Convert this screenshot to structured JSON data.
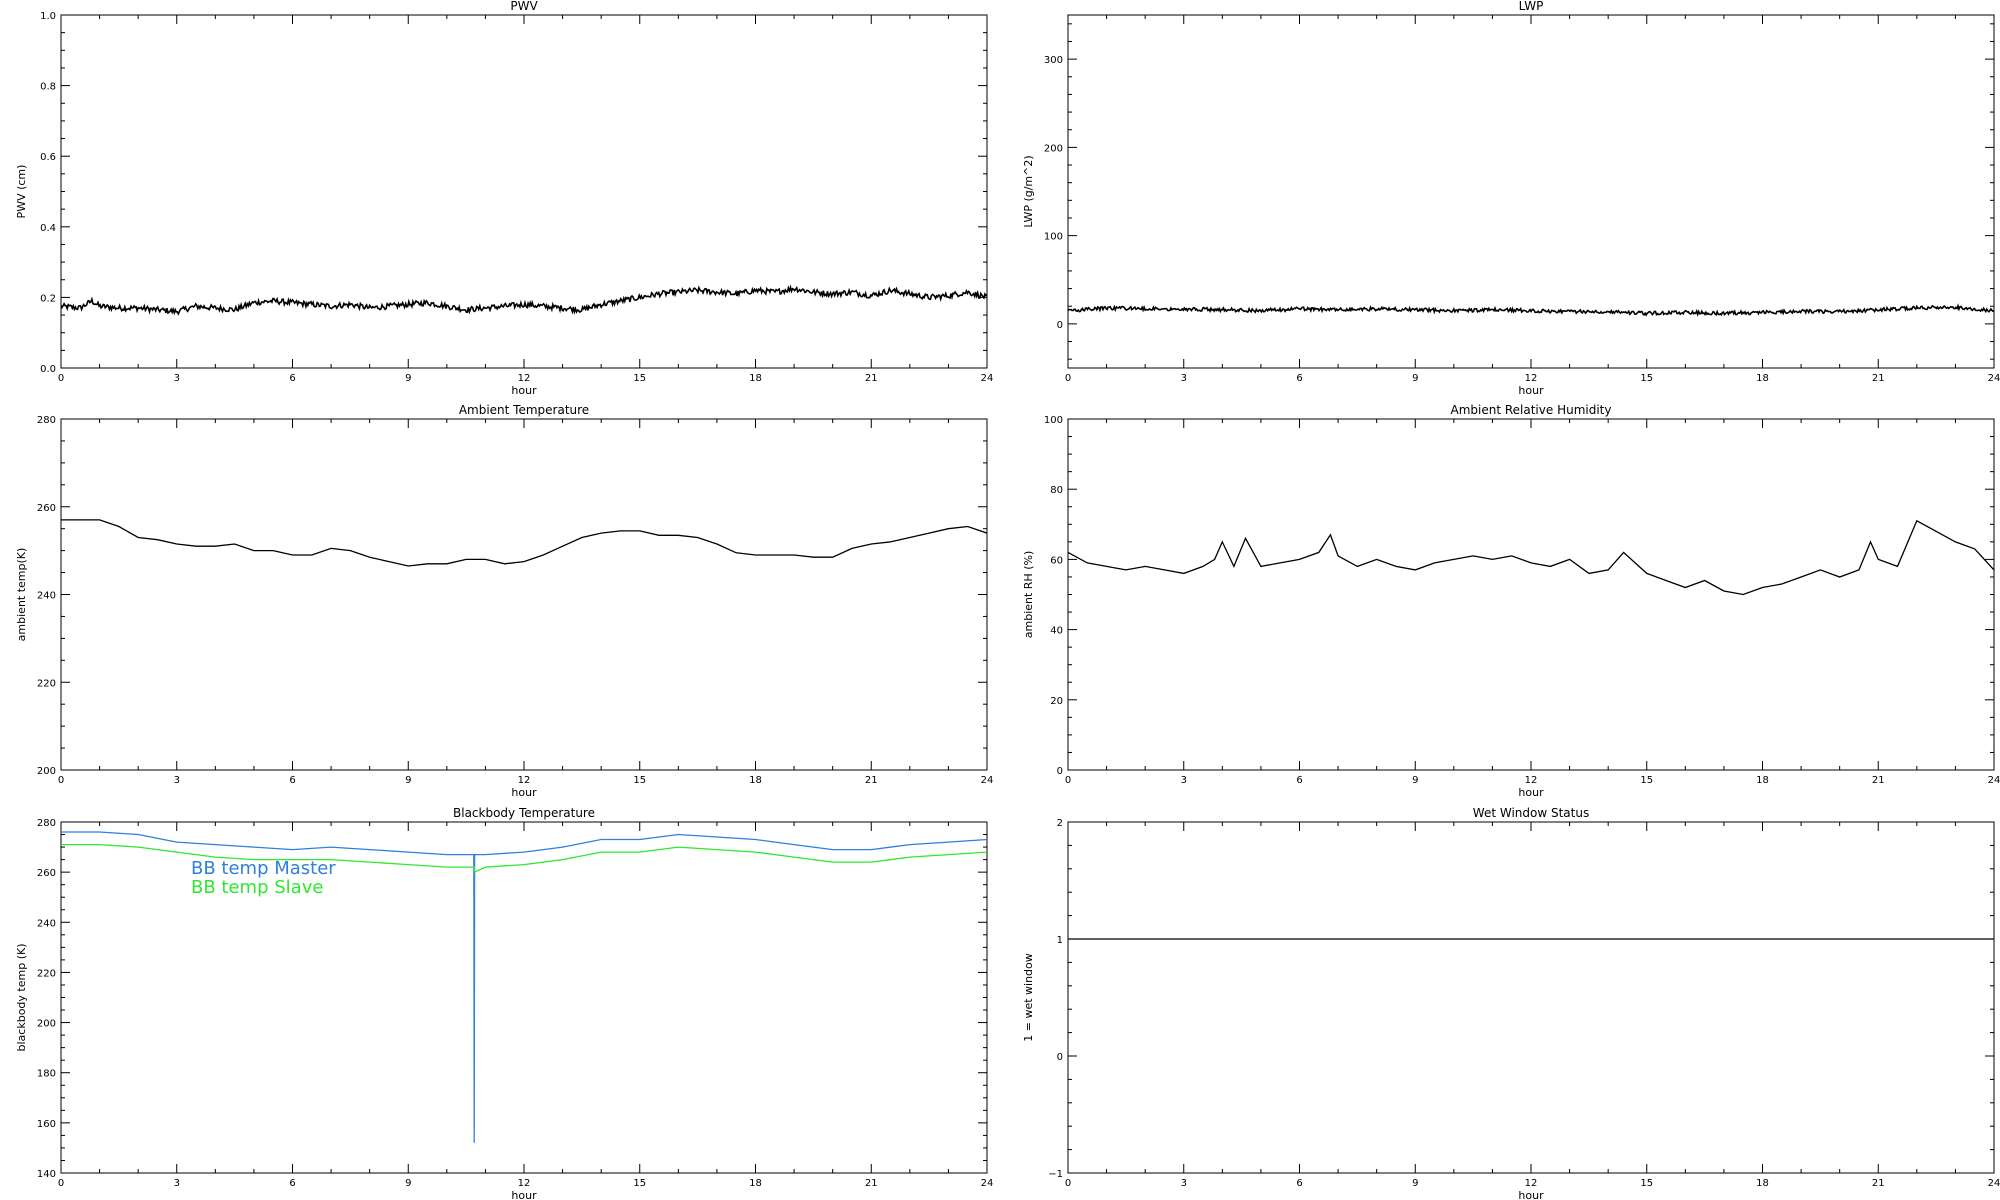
{
  "figure": {
    "background": "#ffffff"
  },
  "chart_data": [
    {
      "id": "pwv",
      "type": "line",
      "marker": "dots",
      "title": "PWV",
      "xlabel": "hour",
      "ylabel": "PWV (cm)",
      "xlim": [
        0,
        24
      ],
      "ylim": [
        0.0,
        1.0
      ],
      "xticks": [
        0,
        3,
        6,
        9,
        12,
        15,
        18,
        21,
        24
      ],
      "yticks": [
        0.0,
        0.2,
        0.4,
        0.6,
        0.8,
        1.0
      ],
      "ytick_labels": [
        "0.0",
        "0.2",
        "0.4",
        "0.6",
        "0.8",
        "1.0"
      ],
      "x": [
        0,
        0.5,
        0.8,
        1,
        1.5,
        2,
        2.5,
        3,
        3.5,
        4,
        4.5,
        5,
        5.5,
        6,
        6.5,
        7,
        7.5,
        8,
        8.5,
        9,
        9.5,
        10,
        10.5,
        11,
        11.5,
        12,
        12.5,
        13,
        13.5,
        14,
        14.5,
        15,
        15.5,
        16,
        16.5,
        17,
        17.5,
        18,
        18.5,
        19,
        19.5,
        20,
        20.5,
        21,
        21.5,
        22,
        22.5,
        23,
        23.5,
        24
      ],
      "series": [
        {
          "color": "#000000",
          "values": [
            0.175,
            0.17,
            0.19,
            0.175,
            0.17,
            0.17,
            0.165,
            0.16,
            0.175,
            0.17,
            0.165,
            0.185,
            0.19,
            0.185,
            0.18,
            0.175,
            0.18,
            0.17,
            0.175,
            0.18,
            0.185,
            0.175,
            0.165,
            0.17,
            0.175,
            0.18,
            0.175,
            0.17,
            0.165,
            0.18,
            0.19,
            0.2,
            0.21,
            0.215,
            0.22,
            0.215,
            0.21,
            0.22,
            0.215,
            0.225,
            0.215,
            0.21,
            0.215,
            0.205,
            0.22,
            0.21,
            0.2,
            0.205,
            0.215,
            0.2
          ],
          "noise": 0.008
        }
      ]
    },
    {
      "id": "lwp",
      "type": "line",
      "marker": "dots",
      "title": "LWP",
      "xlabel": "hour",
      "ylabel": "LWP (g/m^2)",
      "xlim": [
        0,
        24
      ],
      "ylim": [
        -50,
        350
      ],
      "xticks": [
        0,
        3,
        6,
        9,
        12,
        15,
        18,
        21,
        24
      ],
      "yticks": [
        0,
        100,
        200,
        300
      ],
      "ytick_labels": [
        "0",
        "100",
        "200",
        "300"
      ],
      "x": [
        0,
        1,
        2,
        3,
        4,
        5,
        6,
        7,
        8,
        9,
        10,
        11,
        12,
        13,
        14,
        15,
        16,
        17,
        18,
        19,
        20,
        21,
        22,
        23,
        24
      ],
      "series": [
        {
          "color": "#000000",
          "values": [
            15,
            18,
            17,
            17,
            16,
            15,
            17,
            16,
            17,
            16,
            15,
            16,
            15,
            14,
            14,
            12,
            13,
            12,
            13,
            14,
            14,
            16,
            18,
            19,
            15
          ],
          "noise": 2
        }
      ]
    },
    {
      "id": "ambient-temperature",
      "type": "line",
      "title": "Ambient Temperature",
      "xlabel": "hour",
      "ylabel": "ambient temp(K)",
      "xlim": [
        0,
        24
      ],
      "ylim": [
        200,
        280
      ],
      "xticks": [
        0,
        3,
        6,
        9,
        12,
        15,
        18,
        21,
        24
      ],
      "yticks": [
        200,
        220,
        240,
        260,
        280
      ],
      "ytick_labels": [
        "200",
        "220",
        "240",
        "260",
        "280"
      ],
      "x": [
        0,
        0.5,
        1,
        1.5,
        2,
        2.5,
        3,
        3.5,
        4,
        4.5,
        5,
        5.5,
        6,
        6.5,
        7,
        7.5,
        8,
        8.5,
        9,
        9.5,
        10,
        10.5,
        11,
        11.5,
        12,
        12.5,
        13,
        13.5,
        14,
        14.5,
        15,
        15.5,
        16,
        16.5,
        17,
        17.5,
        18,
        18.5,
        19,
        19.5,
        20,
        20.5,
        21,
        21.5,
        22,
        22.5,
        23,
        23.5,
        24
      ],
      "series": [
        {
          "color": "#000000",
          "values": [
            257,
            257,
            257,
            255.5,
            253,
            252.5,
            251.5,
            251,
            251,
            251.5,
            250,
            250,
            249,
            249,
            250.5,
            250,
            248.5,
            247.5,
            246.5,
            247,
            247,
            248,
            248,
            247,
            247.5,
            249,
            251,
            253,
            254,
            254.5,
            254.5,
            253.5,
            253.5,
            253,
            251.5,
            249.5,
            249,
            249,
            249,
            248.5,
            248.5,
            250.5,
            251.5,
            252,
            253,
            254,
            255,
            255.5,
            254
          ]
        }
      ]
    },
    {
      "id": "ambient-relative-humidity",
      "type": "line",
      "marker": "dots",
      "title": "Ambient Relative Humidity",
      "xlabel": "hour",
      "ylabel": "ambient RH (%)",
      "xlim": [
        0,
        24
      ],
      "ylim": [
        0,
        100
      ],
      "xticks": [
        0,
        3,
        6,
        9,
        12,
        15,
        18,
        21,
        24
      ],
      "yticks": [
        0,
        20,
        40,
        60,
        80,
        100
      ],
      "ytick_labels": [
        "0",
        "20",
        "40",
        "60",
        "80",
        "100"
      ],
      "x": [
        0,
        0.5,
        1,
        1.5,
        2,
        2.5,
        3,
        3.5,
        3.8,
        4,
        4.3,
        4.6,
        5,
        5.5,
        6,
        6.5,
        6.8,
        7,
        7.5,
        8,
        8.5,
        9,
        9.5,
        10,
        10.5,
        11,
        11.5,
        12,
        12.5,
        13,
        13.5,
        14,
        14.4,
        14.8,
        15,
        15.5,
        16,
        16.5,
        17,
        17.5,
        18,
        18.5,
        19,
        19.5,
        20,
        20.5,
        20.8,
        21,
        21.5,
        22,
        22.5,
        23,
        23.5,
        24
      ],
      "series": [
        {
          "color": "#000000",
          "values": [
            62,
            59,
            58,
            57,
            58,
            57,
            56,
            58,
            60,
            65,
            58,
            66,
            58,
            59,
            60,
            62,
            67,
            61,
            58,
            60,
            58,
            57,
            59,
            60,
            61,
            60,
            61,
            59,
            58,
            60,
            56,
            57,
            62,
            58,
            56,
            54,
            52,
            54,
            51,
            50,
            52,
            53,
            55,
            57,
            55,
            57,
            65,
            60,
            58,
            71,
            68,
            65,
            63,
            57
          ]
        }
      ]
    },
    {
      "id": "blackbody-temperature",
      "type": "line",
      "title": "Blackbody Temperature",
      "xlabel": "hour",
      "ylabel": "blackbody temp (K)",
      "xlim": [
        0,
        24
      ],
      "ylim": [
        140,
        280
      ],
      "xticks": [
        0,
        3,
        6,
        9,
        12,
        15,
        18,
        21,
        24
      ],
      "yticks": [
        140,
        160,
        180,
        200,
        220,
        240,
        260,
        280
      ],
      "ytick_labels": [
        "140",
        "160",
        "180",
        "200",
        "220",
        "240",
        "260",
        "280"
      ],
      "legend_position": "upper-left",
      "x": [
        0,
        1,
        2,
        3,
        4,
        5,
        6,
        7,
        8,
        9,
        10,
        10.7,
        10.71,
        10.72,
        11,
        12,
        13,
        14,
        15,
        16,
        17,
        18,
        19,
        20,
        21,
        22,
        23,
        24
      ],
      "series": [
        {
          "name": "BB temp Master",
          "color": "#2f7fdc",
          "values": [
            276,
            276,
            275,
            272,
            271,
            270,
            269,
            270,
            269,
            268,
            267,
            267,
            152,
            267,
            267,
            268,
            270,
            273,
            273,
            275,
            274,
            273,
            271,
            269,
            269,
            271,
            272,
            273
          ]
        },
        {
          "name": "BB temp Slave",
          "color": "#2ee82e",
          "values": [
            271,
            271,
            270,
            268,
            266,
            265,
            265,
            265,
            264,
            263,
            262,
            262,
            262,
            260,
            262,
            263,
            265,
            268,
            268,
            270,
            269,
            268,
            266,
            264,
            264,
            266,
            267,
            268
          ]
        }
      ]
    },
    {
      "id": "wet-window-status",
      "type": "line",
      "title": "Wet Window Status",
      "xlabel": "hour",
      "ylabel": "1 = wet window",
      "xlim": [
        0,
        24
      ],
      "ylim": [
        -1,
        2
      ],
      "xticks": [
        0,
        3,
        6,
        9,
        12,
        15,
        18,
        21,
        24
      ],
      "yticks": [
        -1,
        0,
        1,
        2
      ],
      "ytick_labels": [
        "−1",
        "0",
        "1",
        "2"
      ],
      "x": [
        0,
        24
      ],
      "series": [
        {
          "color": "#000000",
          "values": [
            1,
            1
          ]
        }
      ]
    }
  ]
}
